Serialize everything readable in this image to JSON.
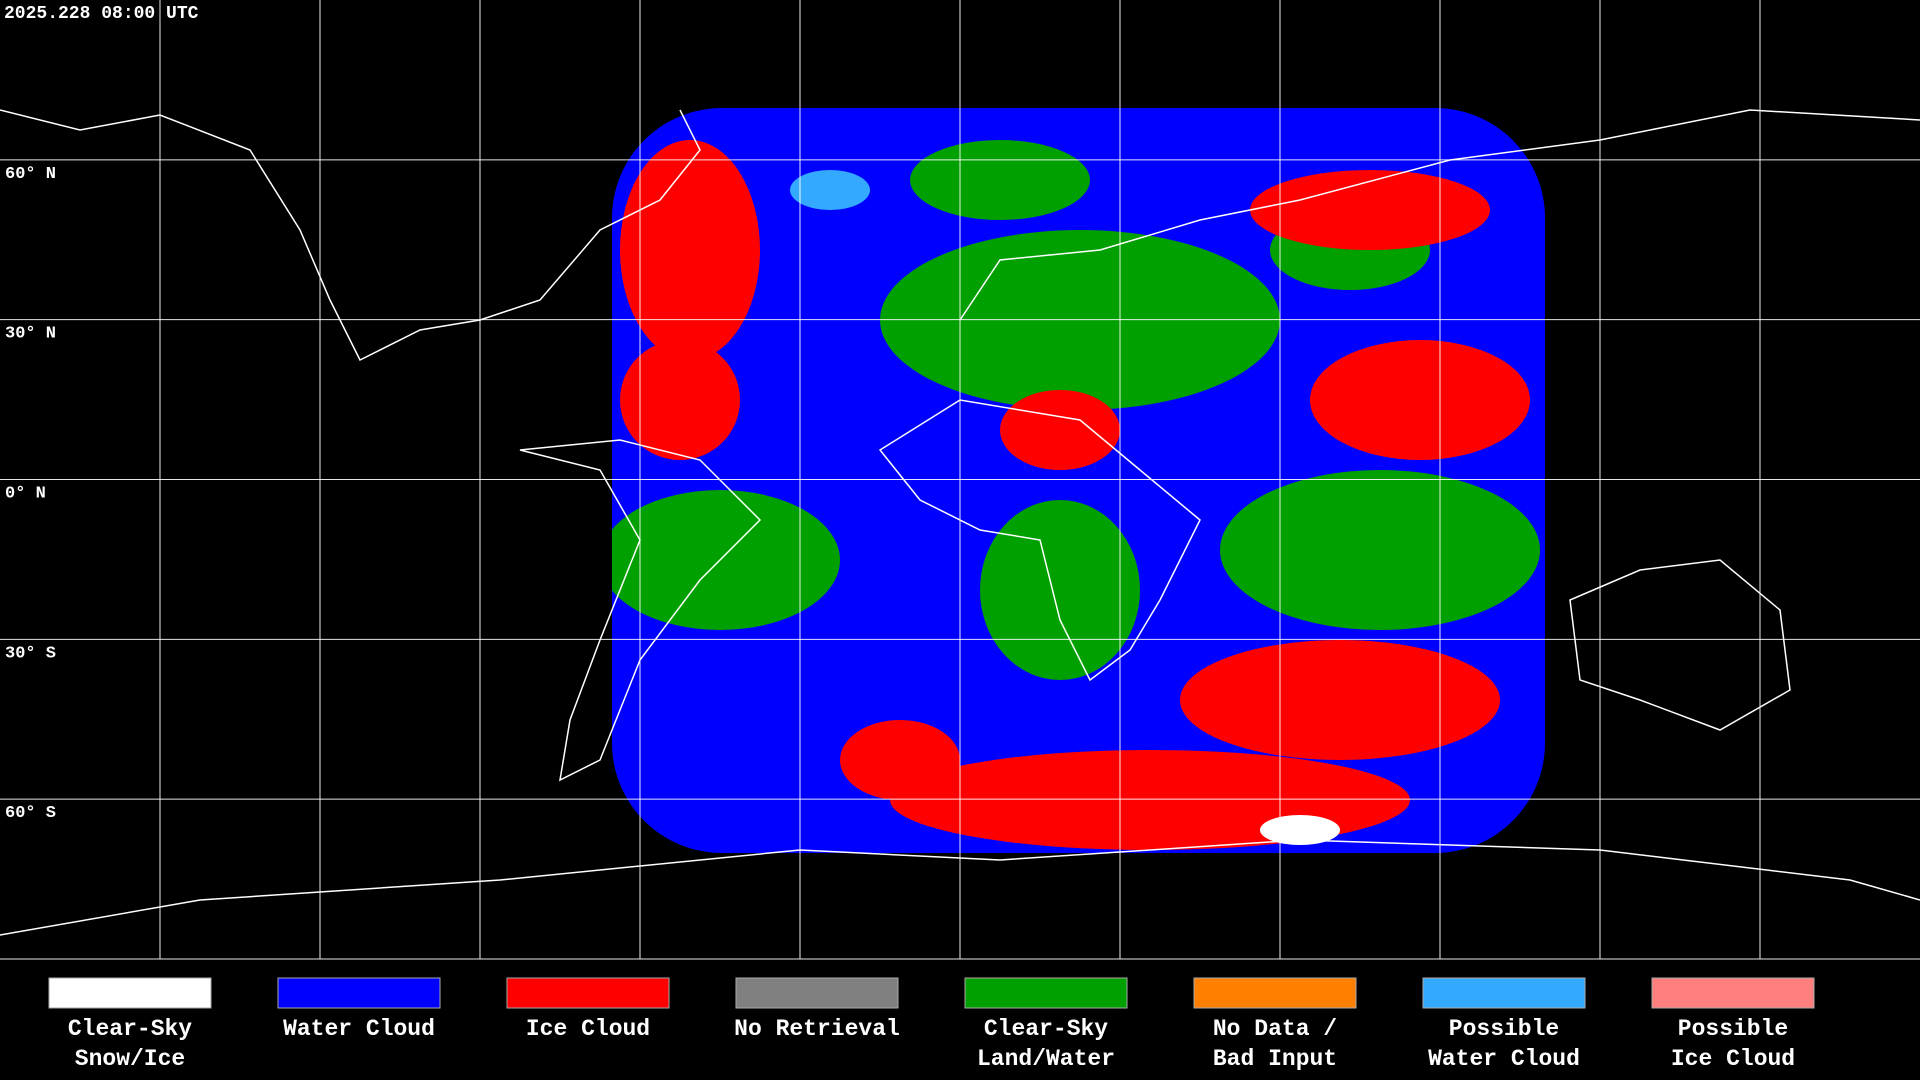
{
  "timestamp": "2025.228 08:00 UTC",
  "lat_labels": [
    "60° N",
    "30° N",
    "0° N",
    "30° S",
    "60° S"
  ],
  "legend": [
    {
      "lines": [
        "Clear-Sky",
        "Snow/Ice"
      ],
      "color": "#ffffff"
    },
    {
      "lines": [
        "Water Cloud"
      ],
      "color": "#0000ff"
    },
    {
      "lines": [
        "Ice Cloud"
      ],
      "color": "#ff0000"
    },
    {
      "lines": [
        "No Retrieval"
      ],
      "color": "#808080"
    },
    {
      "lines": [
        "Clear-Sky",
        "Land/Water"
      ],
      "color": "#00a000"
    },
    {
      "lines": [
        "No Data /",
        "Bad Input"
      ],
      "color": "#ff8000"
    },
    {
      "lines": [
        "Possible",
        "Water Cloud"
      ],
      "color": "#33aaff"
    },
    {
      "lines": [
        "Possible",
        "Ice Cloud"
      ],
      "color": "#ff7f7f"
    }
  ]
}
